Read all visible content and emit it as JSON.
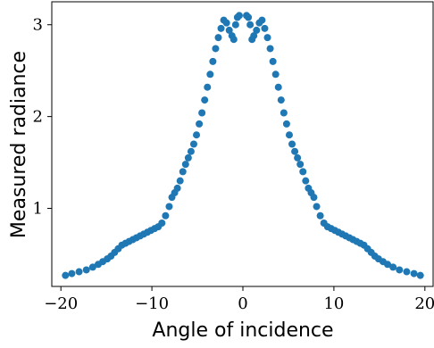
{
  "chart_data": {
    "type": "scatter",
    "xlabel": "Angle of incidence",
    "ylabel": "Measured radiance",
    "xlim": [
      -21,
      21
    ],
    "ylim": [
      0.15,
      3.25
    ],
    "grid": false,
    "xticks": [
      -20,
      -10,
      0,
      10,
      20
    ],
    "yticks": [
      1,
      2,
      3
    ],
    "xtick_labels": [
      "−20",
      "−10",
      "0",
      "10",
      "20"
    ],
    "ytick_labels": [
      "1",
      "2",
      "3"
    ],
    "color": "#1f77b4",
    "series": [
      {
        "x": [
          -19.5,
          -18.8,
          -18.0,
          -17.2,
          -16.5,
          -15.9,
          -15.4,
          -14.9,
          -14.5,
          -14.1,
          -13.7,
          -13.3,
          -12.9,
          -12.5,
          -12.1,
          -11.7,
          -11.3,
          -10.9,
          -10.5,
          -10.1,
          -9.7,
          -9.3,
          -8.9,
          -8.5,
          -8.1,
          -7.8,
          -7.5,
          -7.2,
          -6.9,
          -6.6,
          -6.3,
          -6.0,
          -5.7,
          -5.4,
          -5.1,
          -4.8,
          -4.5,
          -4.2,
          -3.9,
          -3.6,
          -3.3,
          -3.0,
          -2.7,
          -2.4,
          -2.1,
          -1.8,
          -1.5,
          -1.2,
          -1.0,
          -0.8,
          -0.6,
          -0.4,
          0.4,
          0.6,
          0.8,
          1.0,
          1.2,
          1.5,
          1.8,
          2.1,
          2.4,
          2.7,
          3.0,
          3.3,
          3.6,
          3.9,
          4.2,
          4.5,
          4.8,
          5.1,
          5.4,
          5.7,
          6.0,
          6.3,
          6.6,
          6.9,
          7.2,
          7.5,
          7.8,
          8.1,
          8.5,
          8.9,
          9.3,
          9.7,
          10.1,
          10.5,
          10.9,
          11.3,
          11.7,
          12.1,
          12.5,
          12.9,
          13.3,
          13.7,
          14.1,
          14.5,
          14.9,
          15.4,
          15.9,
          16.5,
          17.2,
          18.0,
          18.8,
          19.5
        ],
        "y": [
          0.27,
          0.29,
          0.31,
          0.33,
          0.36,
          0.39,
          0.42,
          0.45,
          0.48,
          0.52,
          0.56,
          0.6,
          0.62,
          0.64,
          0.66,
          0.68,
          0.7,
          0.72,
          0.74,
          0.76,
          0.78,
          0.8,
          0.84,
          0.92,
          1.02,
          1.12,
          1.17,
          1.22,
          1.3,
          1.4,
          1.48,
          1.55,
          1.62,
          1.7,
          1.8,
          1.92,
          2.04,
          2.18,
          2.32,
          2.46,
          2.6,
          2.74,
          2.86,
          2.96,
          3.05,
          3.02,
          2.94,
          2.88,
          2.84,
          3.0,
          3.08,
          3.1,
          3.1,
          3.08,
          3.0,
          2.84,
          2.88,
          2.94,
          3.02,
          3.05,
          2.96,
          2.86,
          2.74,
          2.6,
          2.46,
          2.32,
          2.18,
          2.04,
          1.92,
          1.8,
          1.7,
          1.62,
          1.55,
          1.48,
          1.4,
          1.3,
          1.22,
          1.17,
          1.12,
          1.02,
          0.92,
          0.84,
          0.8,
          0.78,
          0.76,
          0.74,
          0.72,
          0.7,
          0.68,
          0.66,
          0.64,
          0.62,
          0.6,
          0.56,
          0.52,
          0.48,
          0.45,
          0.42,
          0.39,
          0.36,
          0.33,
          0.31,
          0.29,
          0.27
        ]
      }
    ]
  }
}
